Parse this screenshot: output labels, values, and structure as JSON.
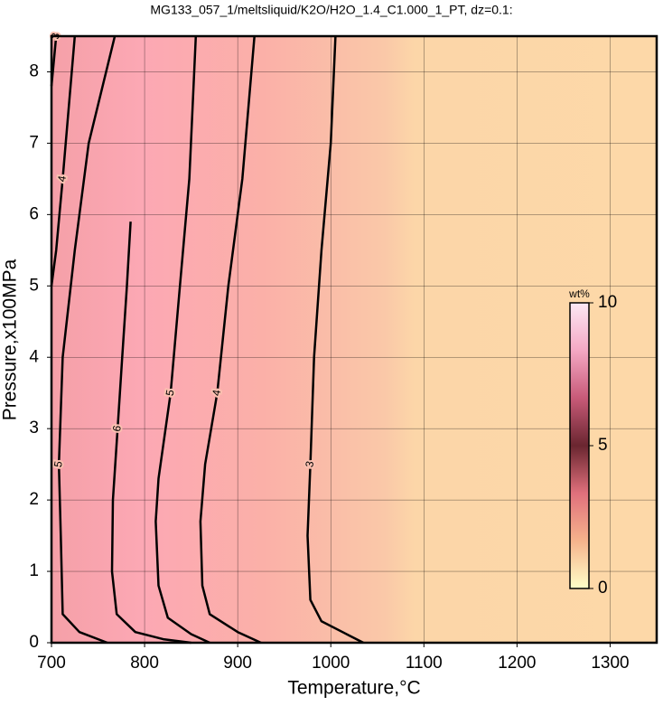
{
  "chart_data": {
    "type": "contour",
    "title": "MG133_057_1/meltsliquid/K2O/H2O_1.4_C1.000_1_PT, dz=0.1:",
    "x_label": "Temperature,°C",
    "y_label": "Pressure,x100MPa",
    "xlim": [
      700,
      1350
    ],
    "ylim": [
      0,
      8.5
    ],
    "xticks": [
      700,
      800,
      900,
      1000,
      1100,
      1200,
      1300
    ],
    "yticks": [
      0,
      1,
      2,
      3,
      4,
      5,
      6,
      7,
      8
    ],
    "grid": true,
    "contours": [
      {
        "level": 3,
        "x": [
          1005,
          1000,
          990,
          982,
          978,
          975,
          978,
          990,
          1020,
          1035
        ],
        "y": [
          8.5,
          7,
          5.5,
          4,
          2.5,
          1.5,
          0.6,
          0.3,
          0.1,
          0
        ]
      },
      {
        "level": 4,
        "x": [
          918,
          905,
          890,
          878,
          865,
          860,
          862,
          870,
          900,
          925
        ],
        "y": [
          8.5,
          6.5,
          5,
          3.5,
          2.5,
          1.7,
          0.8,
          0.4,
          0.15,
          0
        ]
      },
      {
        "level": 5,
        "x": [
          855,
          848,
          838,
          828,
          815,
          812,
          815,
          825,
          850,
          870
        ],
        "y": [
          8.5,
          6.5,
          5,
          3.5,
          2.3,
          1.7,
          0.8,
          0.35,
          0.12,
          0
        ]
      },
      {
        "level": 6,
        "x": [
          785,
          781,
          776,
          771,
          766,
          765,
          770,
          790,
          820,
          850
        ],
        "y": [
          5.9,
          5,
          4,
          3,
          2,
          1,
          0.4,
          0.15,
          0.05,
          0
        ]
      },
      {
        "level": 5,
        "x": [
          768,
          740,
          725,
          712,
          708,
          710,
          712,
          730,
          760
        ],
        "y": [
          8.5,
          7,
          5.5,
          4,
          2.5,
          1.5,
          0.4,
          0.15,
          0
        ]
      },
      {
        "level": 4,
        "x": [
          725,
          712,
          705,
          700
        ],
        "y": [
          8.5,
          6.5,
          5.5,
          5
        ]
      },
      {
        "level": 3,
        "x": [
          705,
          700
        ],
        "y": [
          8.5,
          7.8
        ]
      }
    ],
    "colorbar": {
      "label": "wt%",
      "lim": [
        0,
        10
      ],
      "ticks": [
        0,
        5,
        10
      ],
      "colormap": [
        "#ffffc8",
        "#f6b38c",
        "#e0707c",
        "#6a2630",
        "#c85a78",
        "#f4a8c4",
        "#fce8f4"
      ]
    }
  }
}
